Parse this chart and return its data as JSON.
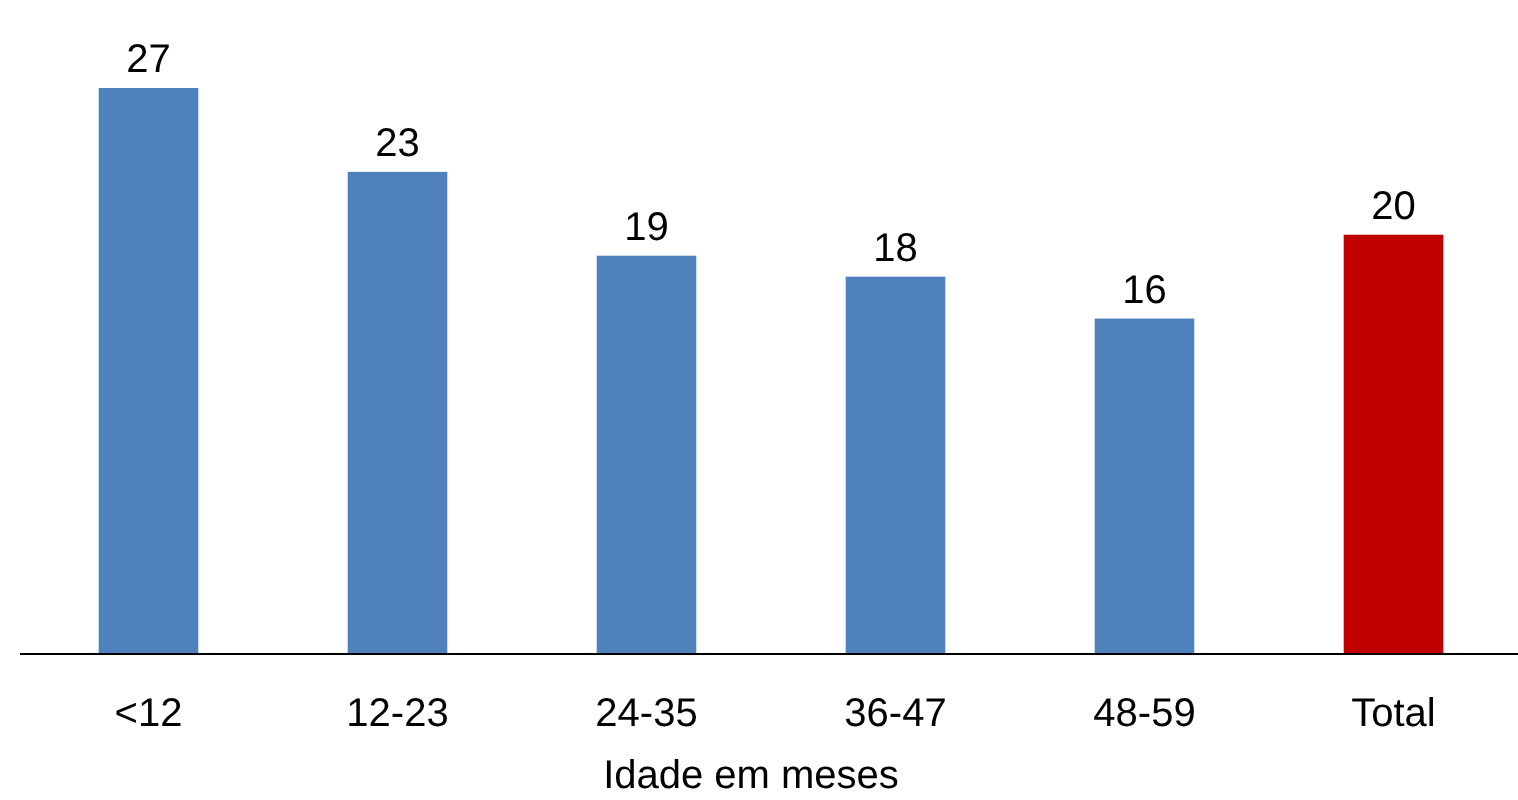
{
  "chart_data": {
    "type": "bar",
    "xlabel": "Idade em meses",
    "categories": [
      "<12",
      "12-23",
      "24-35",
      "36-47",
      "48-59",
      "Total"
    ],
    "values": [
      27,
      23,
      19,
      18,
      16,
      20
    ],
    "colors": [
      "#4f81bd",
      "#4f81bd",
      "#4f81bd",
      "#4f81bd",
      "#4f81bd",
      "#c00000"
    ],
    "data_labels": true
  }
}
